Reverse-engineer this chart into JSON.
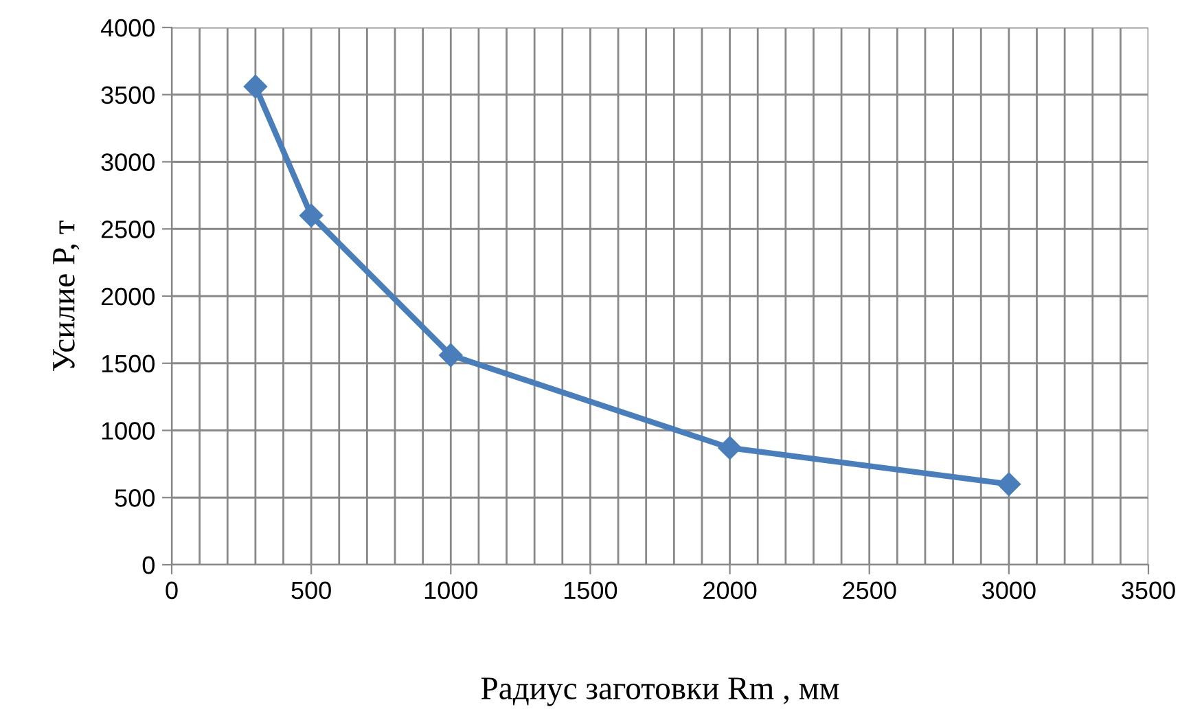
{
  "chart_data": {
    "type": "line",
    "xlabel": "Радиус заготовки Rm , мм",
    "ylabel": "Усилие P, т",
    "x": [
      300,
      500,
      1000,
      2000,
      3000
    ],
    "series": [
      {
        "color": "#4a7ebb",
        "values": [
          3560,
          2600,
          1560,
          870,
          600
        ]
      }
    ],
    "xlim": [
      0,
      3500
    ],
    "xticks": [
      0,
      {
        "value": 100,
        "label": null
      },
      {
        "value": 200,
        "label": null
      },
      {
        "value": 300,
        "label": null
      },
      {
        "value": 400,
        "label": null
      },
      500,
      {
        "value": 600,
        "label": null
      },
      {
        "value": 700,
        "label": null
      },
      {
        "value": 800,
        "label": null
      },
      {
        "value": 900,
        "label": null
      },
      1000,
      {
        "value": 1100,
        "label": null
      },
      {
        "value": 1200,
        "label": null
      },
      {
        "value": 1300,
        "label": null
      },
      {
        "value": 1400,
        "label": null
      },
      1500,
      {
        "value": 1600,
        "label": null
      },
      {
        "value": 1700,
        "label": null
      },
      {
        "value": 1800,
        "label": null
      },
      {
        "value": 1900,
        "label": null
      },
      2000,
      {
        "value": 2100,
        "label": null
      },
      {
        "value": 2200,
        "label": null
      },
      {
        "value": 2300,
        "label": null
      },
      {
        "value": 2400,
        "label": null
      },
      2500,
      {
        "value": 2600,
        "label": null
      },
      {
        "value": 2700,
        "label": null
      },
      {
        "value": 2800,
        "label": null
      },
      {
        "value": 2900,
        "label": null
      },
      3000,
      {
        "value": 3100,
        "label": null
      },
      {
        "value": 3200,
        "label": null
      },
      {
        "value": 3300,
        "label": null
      },
      {
        "value": 3400,
        "label": null
      },
      3500
    ],
    "ylim": [
      0,
      4000
    ],
    "yticks": [
      0,
      500,
      1000,
      1500,
      2000,
      2500,
      3000,
      3500,
      4000
    ],
    "grid": true,
    "marker": "diamond",
    "line_style": "solid"
  }
}
